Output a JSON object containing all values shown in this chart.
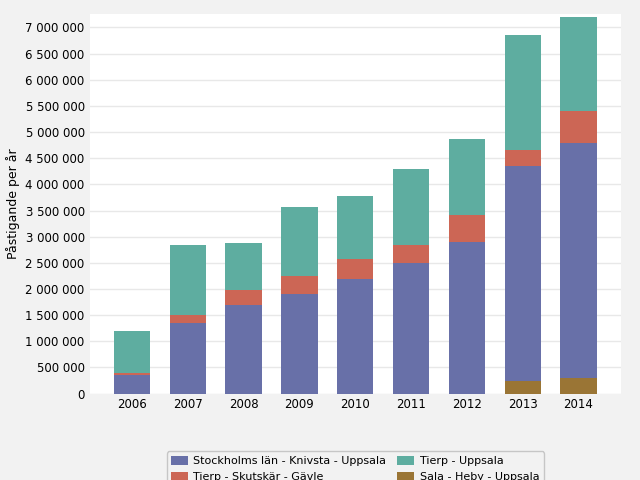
{
  "years": [
    2006,
    2007,
    2008,
    2009,
    2010,
    2011,
    2012,
    2013,
    2014
  ],
  "stockholm_knivsta_uppsala": [
    350000,
    1350000,
    1700000,
    1900000,
    2200000,
    2500000,
    2900000,
    4100000,
    4500000
  ],
  "tierp_skutskar_gavle": [
    50000,
    150000,
    280000,
    340000,
    380000,
    350000,
    520000,
    300000,
    600000
  ],
  "tierp_uppsala": [
    800000,
    1350000,
    900000,
    1320000,
    1200000,
    1450000,
    1450000,
    2200000,
    1800000
  ],
  "sala_heby_uppsala": [
    0,
    0,
    0,
    0,
    0,
    0,
    0,
    250000,
    300000
  ],
  "colors": {
    "stockholm_knivsta_uppsala": "#6870a8",
    "tierp_skutskar_gavle": "#cc6655",
    "tierp_Uppsala": "#5eada0",
    "tierp_uppsala": "#5eada0",
    "sala_heby_uppsala": "#9a7535"
  },
  "legend_labels": {
    "stockholm_knivsta_uppsala": "Stockholms län - Knivsta - Uppsala",
    "tierp_skutskar_gavle": "Tierp - Skutskär - Gävle",
    "tierp_uppsala": "Tierp - Uppsala",
    "sala_heby_uppsala": "Sala - Heby - Uppsala"
  },
  "ylabel": "Påstigande per år",
  "ylim": [
    0,
    7250000
  ],
  "yticks": [
    0,
    500000,
    1000000,
    1500000,
    2000000,
    2500000,
    3000000,
    3500000,
    4000000,
    4500000,
    5000000,
    5500000,
    6000000,
    6500000,
    7000000
  ],
  "background_color": "#f2f2f2",
  "plot_bg_color": "#ffffff",
  "grid_color": "#e8e8e8",
  "bar_width": 0.65,
  "tick_fontsize": 8.5,
  "ylabel_fontsize": 9,
  "legend_fontsize": 8
}
